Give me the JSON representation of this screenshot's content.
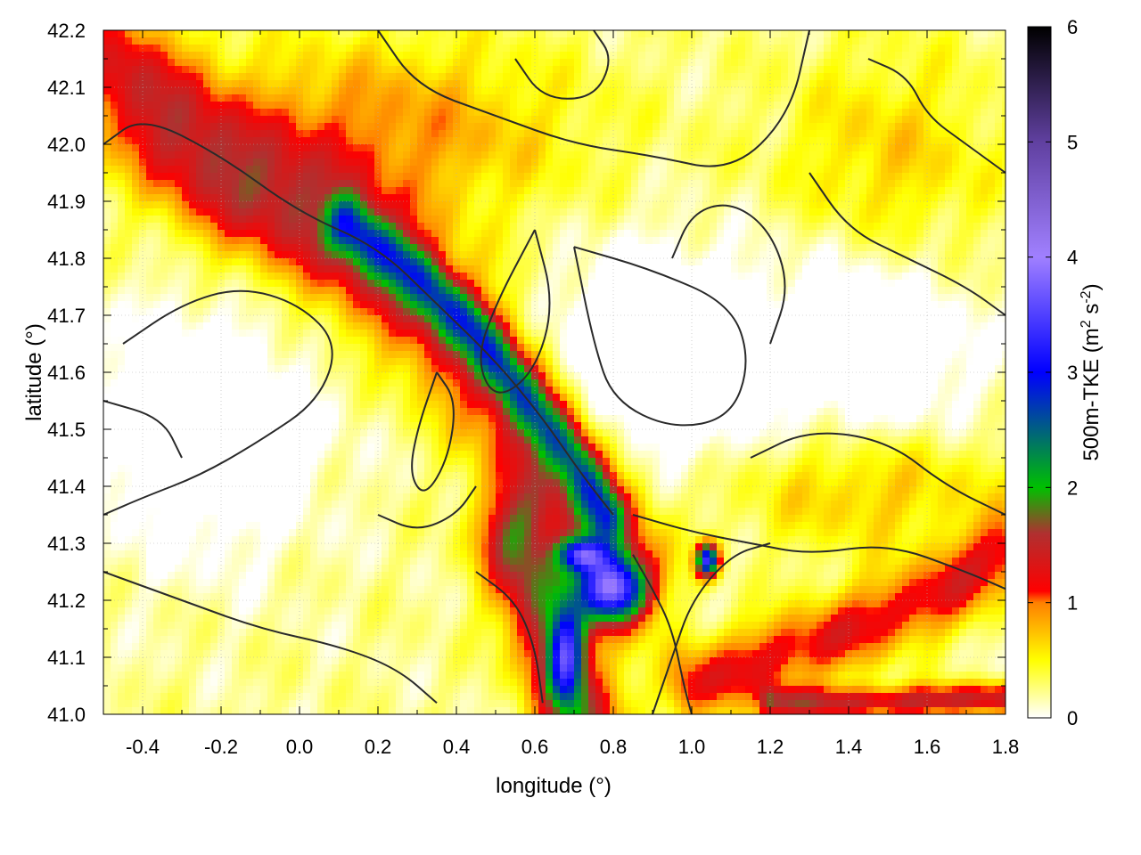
{
  "chart_data": {
    "type": "heatmap",
    "title": "",
    "xlabel": "longitude (°)",
    "ylabel": "latitude (°)",
    "xlim": [
      -0.5,
      1.8
    ],
    "ylim": [
      41.0,
      42.2
    ],
    "xticks": [
      -0.4,
      -0.2,
      0.0,
      0.2,
      0.4,
      0.6,
      0.8,
      1.0,
      1.2,
      1.4,
      1.6,
      1.8
    ],
    "xtick_labels": [
      "-0.4",
      "-0.2",
      "0.0",
      "0.2",
      "0.4",
      "0.6",
      "0.8",
      "1.0",
      "1.2",
      "1.4",
      "1.6",
      "1.8"
    ],
    "yticks": [
      41.0,
      41.1,
      41.2,
      41.3,
      41.4,
      41.5,
      41.6,
      41.7,
      41.8,
      41.9,
      42.0,
      42.1,
      42.2
    ],
    "ytick_labels": [
      "41.0",
      "41.1",
      "41.2",
      "41.3",
      "41.4",
      "41.5",
      "41.6",
      "41.7",
      "41.8",
      "41.9",
      "42.0",
      "42.1",
      "42.2"
    ],
    "grid": true,
    "colorbar": {
      "label_main": "500m-TKE (m",
      "label_sup1": "2",
      "label_mid": " s",
      "label_sup2": "-2",
      "label_end": ")",
      "range": [
        0,
        6
      ],
      "ticks": [
        0,
        1,
        2,
        3,
        4,
        5,
        6
      ],
      "tick_labels": [
        "0",
        "1",
        "2",
        "3",
        "4",
        "5",
        "6"
      ],
      "colors": [
        {
          "value": 0.0,
          "color": "#ffffff"
        },
        {
          "value": 0.5,
          "color": "#ffff00"
        },
        {
          "value": 1.0,
          "color": "#ff8000"
        },
        {
          "value": 1.1,
          "color": "#ff0000"
        },
        {
          "value": 1.6,
          "color": "#b03030"
        },
        {
          "value": 2.0,
          "color": "#00c000"
        },
        {
          "value": 3.0,
          "color": "#0000ff"
        },
        {
          "value": 4.0,
          "color": "#a080ff"
        },
        {
          "value": 5.0,
          "color": "#6040a0"
        },
        {
          "value": 6.0,
          "color": "#000000"
        }
      ]
    },
    "features": [
      {
        "kind": "band",
        "points": [
          [
            -0.45,
            42.12
          ],
          [
            -0.2,
            41.95
          ],
          [
            0.05,
            41.85
          ],
          [
            0.25,
            41.75
          ],
          [
            0.45,
            41.62
          ],
          [
            0.6,
            41.48
          ],
          [
            0.72,
            41.38
          ],
          [
            0.8,
            41.28
          ]
        ],
        "value": 1.1,
        "width": 0.09
      },
      {
        "kind": "band",
        "points": [
          [
            0.12,
            41.86
          ],
          [
            0.3,
            41.77
          ],
          [
            0.45,
            41.67
          ],
          [
            0.58,
            41.55
          ],
          [
            0.7,
            41.45
          ],
          [
            0.78,
            41.35
          ]
        ],
        "value": 1.6,
        "width": 0.035
      },
      {
        "kind": "band",
        "points": [
          [
            0.55,
            41.3
          ],
          [
            0.62,
            41.18
          ],
          [
            0.68,
            41.06
          ],
          [
            0.72,
            41.0
          ]
        ],
        "value": 1.4,
        "width": 0.07
      },
      {
        "kind": "band",
        "points": [
          [
            1.0,
            41.05
          ],
          [
            1.3,
            41.12
          ],
          [
            1.6,
            41.2
          ],
          [
            1.8,
            41.28
          ]
        ],
        "value": 1.0,
        "width": 0.05
      },
      {
        "kind": "band",
        "points": [
          [
            1.2,
            41.02
          ],
          [
            1.5,
            41.02
          ],
          [
            1.8,
            41.03
          ]
        ],
        "value": 1.2,
        "width": 0.02
      },
      {
        "kind": "blob",
        "center": [
          0.8,
          41.22
        ],
        "radius": [
          0.06,
          0.04
        ],
        "value": 2.9
      },
      {
        "kind": "blob",
        "center": [
          0.72,
          41.28
        ],
        "radius": [
          0.04,
          0.02
        ],
        "value": 2.2
      },
      {
        "kind": "blob",
        "center": [
          0.68,
          41.1
        ],
        "radius": [
          0.03,
          0.06
        ],
        "value": 2.0
      },
      {
        "kind": "blob",
        "center": [
          1.04,
          41.27
        ],
        "radius": [
          0.02,
          0.02
        ],
        "value": 3.0
      },
      {
        "kind": "blob",
        "center": [
          0.2,
          42.02
        ],
        "radius": [
          0.35,
          0.12
        ],
        "value": 0.7
      },
      {
        "kind": "blob",
        "center": [
          1.5,
          41.95
        ],
        "radius": [
          0.2,
          0.15
        ],
        "value": 0.5
      },
      {
        "kind": "blob",
        "center": [
          1.45,
          41.4
        ],
        "radius": [
          0.25,
          0.08
        ],
        "value": 0.6
      },
      {
        "kind": "blob",
        "center": [
          0.9,
          41.62
        ],
        "radius": [
          0.18,
          0.13
        ],
        "value": -0.8
      },
      {
        "kind": "blob",
        "center": [
          -0.25,
          41.5
        ],
        "radius": [
          0.2,
          0.15
        ],
        "value": -0.6
      },
      {
        "kind": "blob",
        "center": [
          1.45,
          41.65
        ],
        "radius": [
          0.2,
          0.15
        ],
        "value": -0.6
      }
    ],
    "contours": [
      [
        [
          -0.5,
          42.0
        ],
        [
          -0.4,
          42.05
        ],
        [
          -0.2,
          41.98
        ],
        [
          0.0,
          41.88
        ],
        [
          0.2,
          41.82
        ],
        [
          0.35,
          41.72
        ],
        [
          0.5,
          41.62
        ],
        [
          0.62,
          41.52
        ],
        [
          0.72,
          41.42
        ],
        [
          0.8,
          41.35
        ]
      ],
      [
        [
          -0.45,
          41.65
        ],
        [
          -0.3,
          41.72
        ],
        [
          -0.15,
          41.75
        ],
        [
          0.0,
          41.72
        ],
        [
          0.1,
          41.65
        ],
        [
          0.05,
          41.55
        ],
        [
          -0.1,
          41.48
        ],
        [
          -0.25,
          41.42
        ],
        [
          -0.4,
          41.38
        ],
        [
          -0.5,
          41.35
        ]
      ],
      [
        [
          0.35,
          41.6
        ],
        [
          0.3,
          41.5
        ],
        [
          0.28,
          41.42
        ],
        [
          0.32,
          41.38
        ],
        [
          0.38,
          41.45
        ],
        [
          0.4,
          41.55
        ],
        [
          0.35,
          41.6
        ]
      ],
      [
        [
          0.7,
          41.82
        ],
        [
          0.9,
          41.78
        ],
        [
          1.1,
          41.72
        ],
        [
          1.15,
          41.62
        ],
        [
          1.1,
          41.52
        ],
        [
          0.95,
          41.5
        ],
        [
          0.8,
          41.55
        ],
        [
          0.75,
          41.65
        ],
        [
          0.7,
          41.82
        ]
      ],
      [
        [
          0.6,
          41.85
        ],
        [
          0.5,
          41.72
        ],
        [
          0.45,
          41.62
        ],
        [
          0.5,
          41.55
        ],
        [
          0.6,
          41.6
        ],
        [
          0.65,
          41.72
        ],
        [
          0.6,
          41.85
        ]
      ],
      [
        [
          1.15,
          41.45
        ],
        [
          1.3,
          41.5
        ],
        [
          1.5,
          41.48
        ],
        [
          1.65,
          41.4
        ],
        [
          1.8,
          41.35
        ]
      ],
      [
        [
          0.85,
          41.35
        ],
        [
          1.0,
          41.32
        ],
        [
          1.15,
          41.3
        ],
        [
          1.3,
          41.28
        ],
        [
          1.5,
          41.3
        ],
        [
          1.7,
          41.25
        ],
        [
          1.8,
          41.22
        ]
      ],
      [
        [
          0.9,
          41.0
        ],
        [
          0.95,
          41.1
        ],
        [
          1.0,
          41.2
        ],
        [
          1.1,
          41.28
        ],
        [
          1.2,
          41.3
        ]
      ],
      [
        [
          0.45,
          41.25
        ],
        [
          0.55,
          41.2
        ],
        [
          0.6,
          41.12
        ],
        [
          0.62,
          41.02
        ]
      ],
      [
        [
          -0.5,
          41.25
        ],
        [
          -0.3,
          41.2
        ],
        [
          -0.1,
          41.15
        ],
        [
          0.1,
          41.12
        ],
        [
          0.25,
          41.08
        ],
        [
          0.35,
          41.02
        ]
      ],
      [
        [
          0.2,
          42.2
        ],
        [
          0.3,
          42.1
        ],
        [
          0.5,
          42.05
        ],
        [
          0.7,
          42.0
        ],
        [
          0.9,
          41.98
        ],
        [
          1.1,
          41.95
        ],
        [
          1.25,
          42.05
        ],
        [
          1.3,
          42.2
        ]
      ],
      [
        [
          1.3,
          41.95
        ],
        [
          1.4,
          41.85
        ],
        [
          1.55,
          41.8
        ],
        [
          1.7,
          41.75
        ],
        [
          1.8,
          41.7
        ]
      ],
      [
        [
          -0.5,
          41.55
        ],
        [
          -0.35,
          41.52
        ],
        [
          -0.3,
          41.45
        ]
      ],
      [
        [
          0.95,
          41.8
        ],
        [
          1.0,
          41.88
        ],
        [
          1.1,
          41.9
        ],
        [
          1.2,
          41.85
        ],
        [
          1.25,
          41.75
        ],
        [
          1.2,
          41.65
        ]
      ],
      [
        [
          0.55,
          42.15
        ],
        [
          0.62,
          42.08
        ],
        [
          0.75,
          42.08
        ],
        [
          0.8,
          42.15
        ],
        [
          0.75,
          42.2
        ]
      ],
      [
        [
          1.45,
          42.15
        ],
        [
          1.55,
          42.12
        ],
        [
          1.6,
          42.05
        ],
        [
          1.7,
          42.0
        ],
        [
          1.8,
          41.95
        ]
      ],
      [
        [
          0.2,
          41.35
        ],
        [
          0.3,
          41.32
        ],
        [
          0.4,
          41.35
        ],
        [
          0.45,
          41.4
        ]
      ],
      [
        [
          0.85,
          41.28
        ],
        [
          0.9,
          41.22
        ],
        [
          0.95,
          41.15
        ],
        [
          0.98,
          41.05
        ],
        [
          1.0,
          41.0
        ]
      ]
    ]
  }
}
